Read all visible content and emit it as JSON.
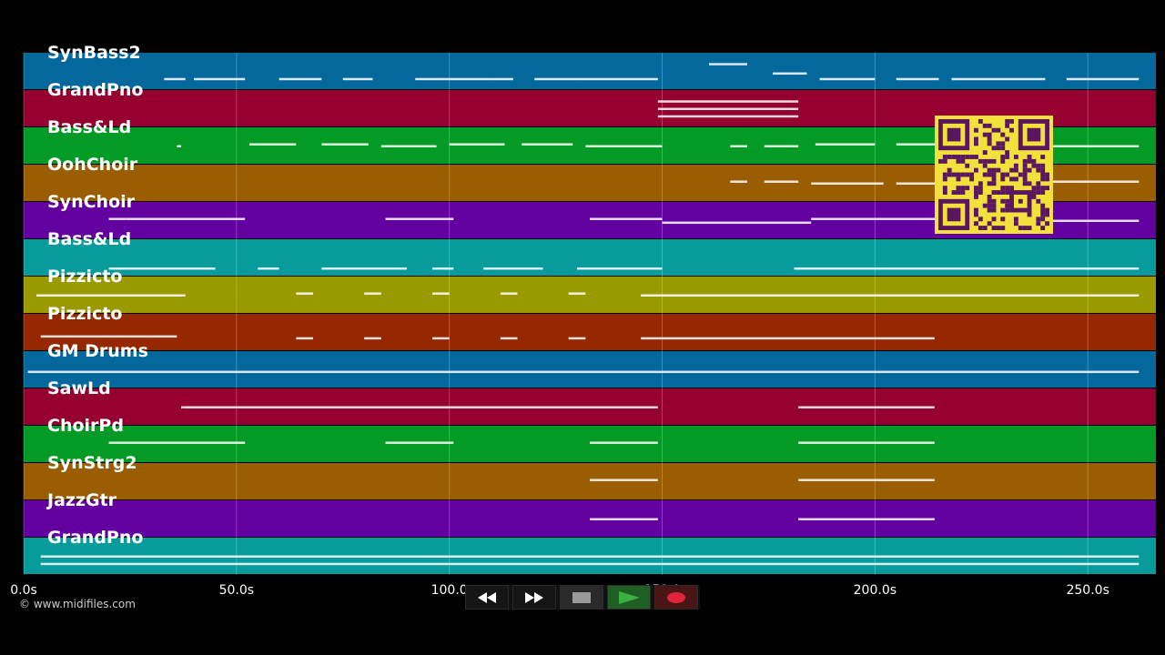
{
  "credit": "© www.midifiles.com",
  "tracks": [
    {
      "name": "SynBass2",
      "color": "#05689c"
    },
    {
      "name": "GrandPno",
      "color": "#960030"
    },
    {
      "name": "Bass&Ld",
      "color": "#039a25"
    },
    {
      "name": "OohChoir",
      "color": "#9a5d02"
    },
    {
      "name": "SynChoir",
      "color": "#6301a0"
    },
    {
      "name": "Bass&Ld",
      "color": "#079b9c"
    },
    {
      "name": "Pizzicto",
      "color": "#9a9900"
    },
    {
      "name": "Pizzicto",
      "color": "#962801"
    },
    {
      "name": "GM Drums",
      "color": "#05689c"
    },
    {
      "name": "SawLd",
      "color": "#960030"
    },
    {
      "name": "ChoirPd",
      "color": "#039a25"
    },
    {
      "name": "SynStrg2",
      "color": "#9a5d02"
    },
    {
      "name": "JazzGtr",
      "color": "#6301a0"
    },
    {
      "name": "GrandPno",
      "color": "#079b9c"
    }
  ],
  "timeline": {
    "max_seconds": 266,
    "ticks": [
      {
        "value": 0,
        "label": "0.0s"
      },
      {
        "value": 50,
        "label": "50.0s"
      },
      {
        "value": 100,
        "label": "100.0"
      },
      {
        "value": 150,
        "label": "150.0"
      },
      {
        "value": 200,
        "label": "200.0s"
      },
      {
        "value": 250,
        "label": "250.0s"
      }
    ]
  },
  "transport": {
    "rewind_icon": "rewind-icon",
    "fast_forward_icon": "fast-forward-icon",
    "stop_icon": "stop-icon",
    "play_icon": "play-icon",
    "record_icon": "record-icon",
    "play_color": "#3cb043",
    "record_color": "#e0253a"
  },
  "qr": {
    "color": "#f2e13a",
    "ink": "#5a1660"
  },
  "note_segments": [
    [
      [
        33,
        38,
        0.7
      ],
      [
        40,
        52,
        0.7
      ],
      [
        60,
        70,
        0.7
      ],
      [
        75,
        82,
        0.7
      ],
      [
        92,
        110,
        0.7
      ],
      [
        110,
        115,
        0.7
      ],
      [
        120,
        130,
        0.7
      ],
      [
        130,
        149,
        0.7
      ],
      [
        161,
        170,
        0.3
      ],
      [
        176,
        184,
        0.55
      ],
      [
        187,
        200,
        0.7
      ],
      [
        205,
        215,
        0.7
      ],
      [
        218,
        240,
        0.7
      ],
      [
        245,
        262,
        0.7
      ]
    ],
    [
      [
        149,
        182,
        0.3
      ],
      [
        149,
        182,
        0.5
      ],
      [
        149,
        182,
        0.7
      ]
    ],
    [
      [
        36,
        37,
        0.5
      ],
      [
        53,
        64,
        0.45
      ],
      [
        70,
        81,
        0.45
      ],
      [
        84,
        97,
        0.5
      ],
      [
        100,
        113,
        0.45
      ],
      [
        117,
        129,
        0.45
      ],
      [
        132,
        150,
        0.5
      ],
      [
        166,
        170,
        0.5
      ],
      [
        174,
        182,
        0.5
      ],
      [
        186,
        200,
        0.45
      ],
      [
        205,
        228,
        0.45
      ],
      [
        230,
        262,
        0.5
      ]
    ],
    [
      [
        166,
        170,
        0.45
      ],
      [
        174,
        182,
        0.45
      ],
      [
        185,
        202,
        0.5
      ],
      [
        205,
        228,
        0.5
      ],
      [
        232,
        262,
        0.45
      ]
    ],
    [
      [
        20,
        24,
        0.45
      ],
      [
        24,
        52,
        0.45
      ],
      [
        85,
        101,
        0.45
      ],
      [
        133,
        150,
        0.45
      ],
      [
        150,
        185,
        0.55
      ],
      [
        185,
        232,
        0.45
      ],
      [
        236,
        262,
        0.5
      ]
    ],
    [
      [
        20,
        45,
        0.78
      ],
      [
        55,
        60,
        0.78
      ],
      [
        70,
        90,
        0.78
      ],
      [
        96,
        101,
        0.78
      ],
      [
        108,
        122,
        0.78
      ],
      [
        130,
        150,
        0.78
      ],
      [
        181,
        262,
        0.78
      ]
    ],
    [
      [
        3,
        38,
        0.5
      ],
      [
        64,
        68,
        0.45
      ],
      [
        80,
        84,
        0.45
      ],
      [
        96,
        100,
        0.45
      ],
      [
        112,
        116,
        0.45
      ],
      [
        128,
        132,
        0.45
      ],
      [
        145,
        262,
        0.5
      ]
    ],
    [
      [
        4,
        36,
        0.6
      ],
      [
        64,
        68,
        0.65
      ],
      [
        80,
        84,
        0.65
      ],
      [
        96,
        100,
        0.65
      ],
      [
        112,
        116,
        0.65
      ],
      [
        128,
        132,
        0.65
      ],
      [
        145,
        214,
        0.65
      ]
    ],
    [
      [
        1,
        262,
        0.55
      ]
    ],
    [
      [
        37,
        149,
        0.5
      ],
      [
        182,
        214,
        0.5
      ]
    ],
    [
      [
        20,
        52,
        0.45
      ],
      [
        85,
        101,
        0.45
      ],
      [
        133,
        149,
        0.45
      ],
      [
        182,
        214,
        0.45
      ]
    ],
    [
      [
        133,
        149,
        0.45
      ],
      [
        182,
        214,
        0.45
      ]
    ],
    [
      [
        133,
        149,
        0.5
      ],
      [
        182,
        214,
        0.5
      ]
    ],
    [
      [
        4,
        262,
        0.5
      ],
      [
        4,
        262,
        0.7
      ]
    ]
  ]
}
